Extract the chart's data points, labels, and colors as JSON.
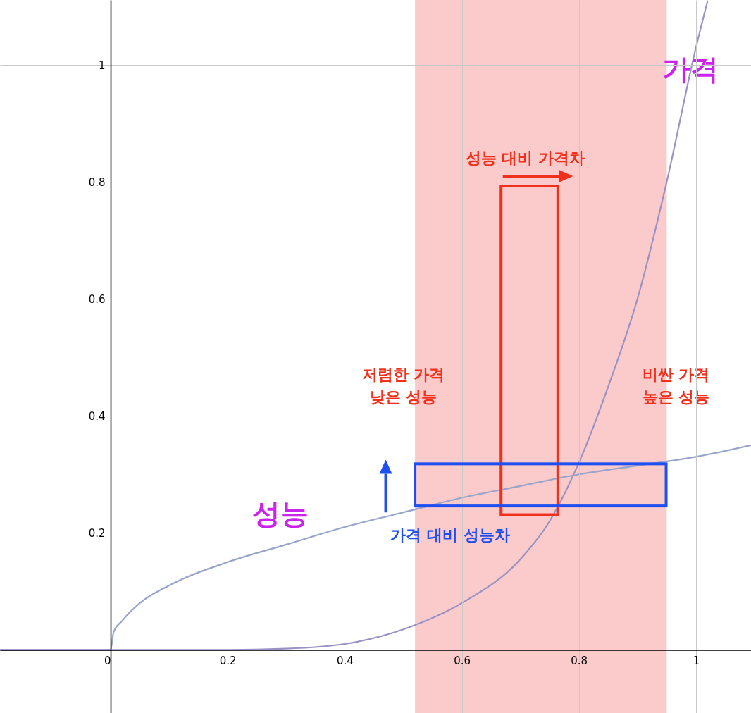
{
  "chart_data": {
    "type": "line",
    "xlim": [
      -0.189,
      1.094
    ],
    "ylim": [
      -0.108,
      1.111
    ],
    "xticks": [
      0,
      0.2,
      0.4,
      0.6,
      0.8,
      1
    ],
    "yticks": [
      0.2,
      0.4,
      0.6,
      0.8,
      1
    ],
    "grid": true,
    "line_style": "solid",
    "marker": "none",
    "series": [
      {
        "color": "#98a4c9",
        "x": [
          -0.189,
          0,
          0.005,
          0.02,
          0.05,
          0.1,
          0.2,
          0.3,
          0.4,
          0.5,
          0.6,
          0.7,
          0.8,
          0.9,
          1.0,
          1.094
        ],
        "values": [
          0,
          0,
          0.03,
          0.05,
          0.08,
          0.11,
          0.15,
          0.18,
          0.21,
          0.235,
          0.26,
          0.28,
          0.3,
          0.315,
          0.33,
          0.35
        ]
      },
      {
        "color": "#9a92c4",
        "x": [
          -0.189,
          0,
          0.2,
          0.3,
          0.4,
          0.5,
          0.6,
          0.7,
          0.75,
          0.8,
          0.85,
          0.9,
          0.95,
          1.0,
          1.02
        ],
        "values": [
          0,
          0,
          0,
          0.002,
          0.01,
          0.035,
          0.08,
          0.155,
          0.22,
          0.32,
          0.45,
          0.6,
          0.8,
          1.03,
          1.11
        ]
      }
    ],
    "bands": [
      {
        "axis": "x",
        "from": 0.52,
        "to": 0.95,
        "color": "#f9b4b4"
      }
    ],
    "annotations": [
      {
        "text": "가격",
        "x": 0.99,
        "y": 0.99
      },
      "성능",
      "성능 대비 가격차",
      "저렴한 가격\n낮은 성능",
      "비싼 가격\n높은 성능",
      "가격 대비 성능차"
    ]
  }
}
